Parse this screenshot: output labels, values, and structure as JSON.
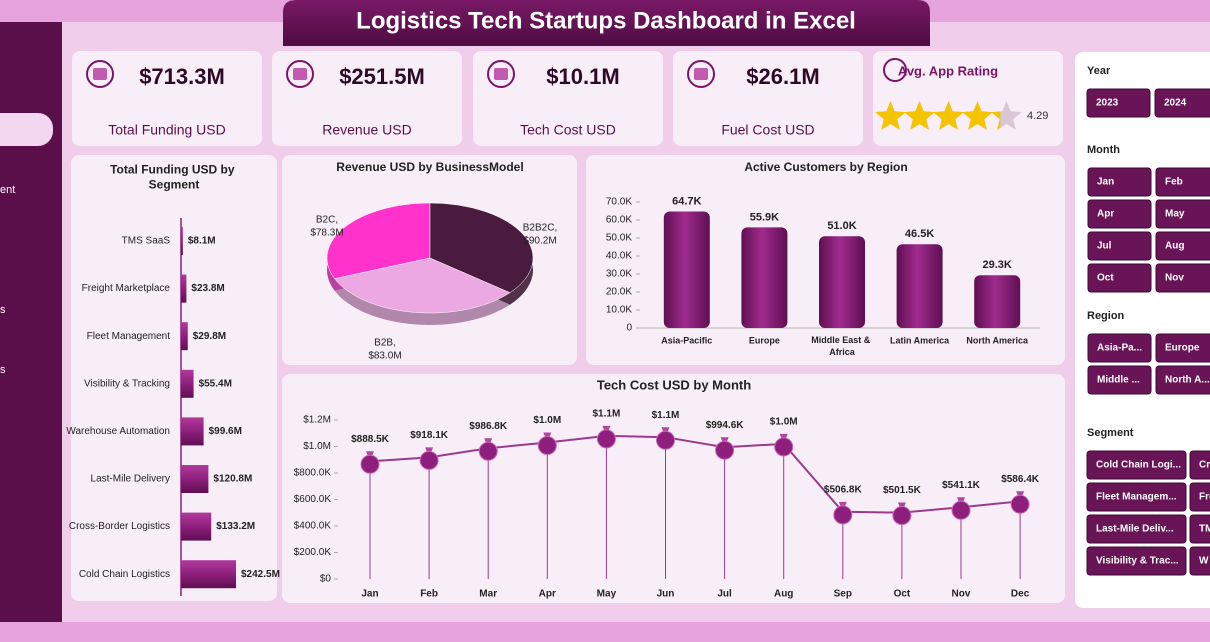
{
  "header": {
    "title": "Logistics Tech Startups Dashboard in Excel"
  },
  "sidebar": {
    "items": [
      "ent",
      "s",
      "s"
    ]
  },
  "kpis": [
    {
      "value": "$713.3M",
      "label": "Total Funding USD"
    },
    {
      "value": "$251.5M",
      "label": "Revenue USD"
    },
    {
      "value": "$10.1M",
      "label": "Tech Cost USD"
    },
    {
      "value": "$26.1M",
      "label": "Fuel Cost USD"
    },
    {
      "label": "Avg. App Rating",
      "value": 4.29
    }
  ],
  "slicers": [
    {
      "title": "Year",
      "items": [
        "2023",
        "2024"
      ]
    },
    {
      "title": "Month",
      "items": [
        "Jan",
        "Feb",
        "Apr",
        "May",
        "Jul",
        "Aug",
        "Oct",
        "Nov"
      ]
    },
    {
      "title": "Region",
      "items": [
        "Asia-Pa...",
        "Europe",
        "Middle ...",
        "North A..."
      ]
    },
    {
      "title": "Segment",
      "items": [
        "Cold Chain Logi...",
        "Cr",
        "Fleet Managem...",
        "Fre",
        "Last-Mile Deliv...",
        "TM",
        "Visibility & Trac...",
        "W"
      ]
    }
  ],
  "chart_data": [
    {
      "type": "hbar",
      "title": "Total Funding USD by Segment",
      "color": "#8e1f7c",
      "categories": [
        "TMS SaaS",
        "Freight Marketplace",
        "Fleet Management",
        "Visibility & Tracking",
        "Warehouse Automation",
        "Last-Mile Delivery",
        "Cross-Border Logistics",
        "Cold Chain Logistics"
      ],
      "values": [
        8.1,
        23.8,
        29.8,
        55.4,
        99.6,
        120.8,
        133.2,
        242.5
      ],
      "value_labels": [
        "$8.1M",
        "$23.8M",
        "$29.8M",
        "$55.4M",
        "$99.6M",
        "$120.8M",
        "$133.2M",
        "$242.5M"
      ]
    },
    {
      "type": "pie",
      "title": "Revenue USD by BusinessModel",
      "categories": [
        "B2C,",
        "B2B2C,",
        "B2B,"
      ],
      "values": [
        78.3,
        90.2,
        83.0
      ],
      "value_labels": [
        "$78.3M",
        "$90.2M",
        "$83.0M"
      ],
      "colors": [
        "#ff33cc",
        "#4a1a3f",
        "#eba8e3"
      ]
    },
    {
      "type": "bar",
      "title": "Active Customers by Region",
      "color": "#7a1468",
      "categories": [
        "Asia-Pacific",
        "Europe",
        "Middle East & Africa",
        "Latin America",
        "North America"
      ],
      "values": [
        64.7,
        55.9,
        51.0,
        46.5,
        29.3
      ],
      "value_labels": [
        "64.7K",
        "55.9K",
        "51.0K",
        "46.5K",
        "29.3K"
      ],
      "ylim": [
        0,
        70
      ],
      "yticks": [
        0,
        {
          "value": 10,
          "label": "10.0K"
        },
        {
          "value": 20,
          "label": "20.0K"
        },
        {
          "value": 30,
          "label": "30.0K"
        },
        {
          "value": 40,
          "label": "40.0K"
        },
        {
          "value": 50,
          "label": "50.0K"
        },
        {
          "value": 60,
          "label": "60.0K"
        },
        {
          "value": 70,
          "label": "70.0K"
        }
      ]
    },
    {
      "type": "line",
      "title": "Tech Cost USD by Month",
      "color": "#9b3a8c",
      "categories": [
        "Jan",
        "Feb",
        "Mar",
        "Apr",
        "May",
        "Jun",
        "Jul",
        "Aug",
        "Sep",
        "Oct",
        "Nov",
        "Dec"
      ],
      "values": [
        888500,
        918100,
        986800,
        1030000,
        1080000,
        1070000,
        994600,
        1020000,
        506800,
        501500,
        541100,
        586400
      ],
      "value_labels": [
        "$888.5K",
        "$918.1K",
        "$986.8K",
        "$1.0M",
        "$1.1M",
        "$1.1M",
        "$994.6K",
        "$1.0M",
        "$506.8K",
        "$501.5K",
        "$541.1K",
        "$586.4K"
      ],
      "ylim": [
        0,
        1200000
      ],
      "yticks": [
        {
          "value": 0,
          "label": "$0"
        },
        {
          "value": 200000,
          "label": "$200.0K"
        },
        {
          "value": 400000,
          "label": "$400.0K"
        },
        {
          "value": 600000,
          "label": "$600.0K"
        },
        {
          "value": 800000,
          "label": "$800.0K"
        },
        {
          "value": 1000000,
          "label": "$1.0M"
        },
        {
          "value": 1200000,
          "label": "$1.2M"
        }
      ]
    }
  ]
}
